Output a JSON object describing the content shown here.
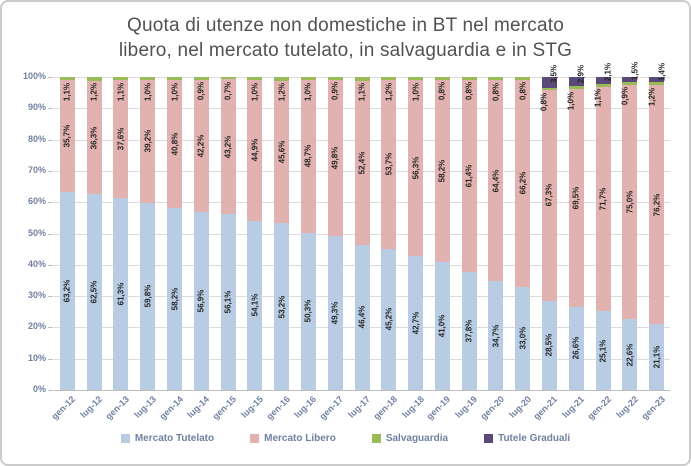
{
  "title_lines": [
    "Quota di utenze non domestiche in BT nel mercato",
    "libero, nel mercato tutelato, in salvaguardia e in STG"
  ],
  "chart_data": {
    "type": "bar",
    "stacked": true,
    "percent_stacked": true,
    "title": "Quota di utenze non domestiche in BT nel mercato libero, nel mercato tutelato, in salvaguardia e in STG",
    "xlabel": "",
    "ylabel": "",
    "ylim": [
      0,
      100
    ],
    "grid": "horizontal",
    "legend_position": "bottom",
    "y_ticks": [
      "0%",
      "10%",
      "20%",
      "30%",
      "40%",
      "50%",
      "60%",
      "70%",
      "80%",
      "90%",
      "100%"
    ],
    "categories": [
      "gen-12",
      "lug-12",
      "gen-13",
      "lug-13",
      "gen-14",
      "lug-14",
      "gen-15",
      "lug-15",
      "gen-16",
      "lug-16",
      "gen-17",
      "lug-17",
      "gen-18",
      "lug-18",
      "gen-19",
      "lug-19",
      "gen-20",
      "lug-20",
      "gen-21",
      "lug-21",
      "gen-22",
      "lug-22",
      "gen-23"
    ],
    "series": [
      {
        "name": "Mercato Tutelato",
        "color": "#b8cce4",
        "values": [
          63.2,
          62.5,
          61.3,
          59.8,
          58.2,
          56.9,
          56.1,
          54.1,
          53.2,
          50.3,
          49.3,
          46.4,
          45.2,
          42.7,
          41.0,
          37.8,
          34.7,
          33.0,
          28.5,
          26.6,
          25.1,
          22.6,
          21.1
        ]
      },
      {
        "name": "Mercato Libero",
        "color": "#e1b2b0",
        "values": [
          35.7,
          36.3,
          37.6,
          39.2,
          40.8,
          42.2,
          43.2,
          44.9,
          45.6,
          48.7,
          49.8,
          52.4,
          53.7,
          56.3,
          58.2,
          61.4,
          64.4,
          66.2,
          67.3,
          69.5,
          71.7,
          75.0,
          76.2
        ]
      },
      {
        "name": "Salvaguardia",
        "color": "#9bbb59",
        "values": [
          1.1,
          1.2,
          1.1,
          1.0,
          1.0,
          0.9,
          0.7,
          1.0,
          1.2,
          1.0,
          0.9,
          1.1,
          1.2,
          1.0,
          0.8,
          0.8,
          0.8,
          0.8,
          0.8,
          1.0,
          1.1,
          0.9,
          1.2
        ]
      },
      {
        "name": "Tutele Graduali",
        "color": "#5b4a79",
        "values": [
          0,
          0,
          0,
          0,
          0,
          0,
          0,
          0,
          0,
          0,
          0,
          0,
          0,
          0,
          0,
          0,
          0,
          0,
          3.5,
          2.9,
          2.1,
          1.5,
          1.4
        ]
      }
    ],
    "label_format": "decimal-comma-percent"
  },
  "colors": {
    "grid": "#dcdcdc",
    "axis": "#bfbfbf",
    "axis_text": "#7081a1",
    "data_label": "#262626",
    "title_text": "#525252",
    "frame_border": "#cbcbcb"
  }
}
